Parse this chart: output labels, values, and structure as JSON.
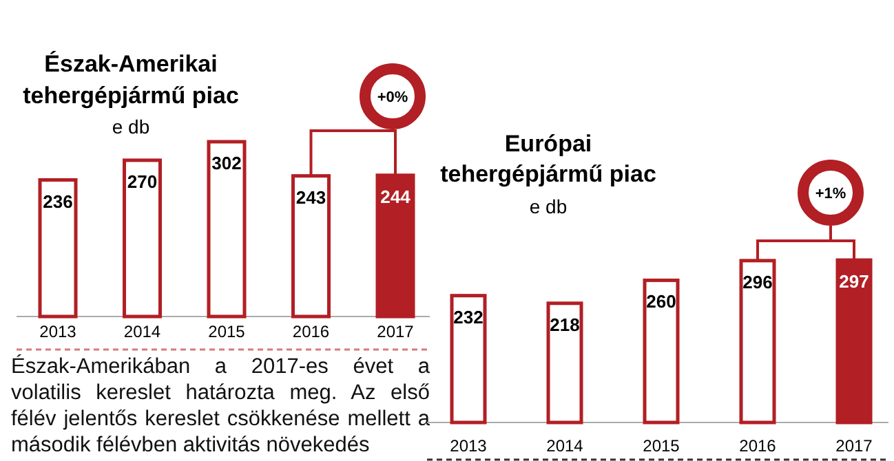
{
  "chart_data": [
    {
      "type": "bar",
      "title": "Észak-Amerikai tehergépjármű piac",
      "subtitle": "e db",
      "categories": [
        "2013",
        "2014",
        "2015",
        "2016",
        "2017"
      ],
      "values": [
        236,
        270,
        302,
        243,
        244
      ],
      "color": "#b21f24",
      "colors": [
        "#ffffff",
        "#ffffff",
        "#ffffff",
        "#ffffff",
        "#b21f24"
      ],
      "data_labels": true,
      "annotations": [
        "+0%",
        "Észak-Amerikában a 2017-es évet a volatilis kereslet határozta meg. Az első félév jelentős kereslet csökkenése mellett a második félévben aktivitás növekedés"
      ]
    },
    {
      "type": "bar",
      "title": "Európai tehergépjármű piac",
      "subtitle": "e db",
      "categories": [
        "2013",
        "2014",
        "2015",
        "2016",
        "2017"
      ],
      "values": [
        232,
        218,
        260,
        296,
        297
      ],
      "color": "#b21f24",
      "colors": [
        "#ffffff",
        "#ffffff",
        "#ffffff",
        "#ffffff",
        "#b21f24"
      ],
      "data_labels": true,
      "annotations": [
        "+1%"
      ]
    }
  ]
}
